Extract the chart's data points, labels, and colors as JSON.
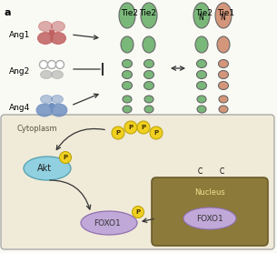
{
  "bg_color": "#fafaf5",
  "cell_bg": "#f0ead8",
  "nucleus_bg": "#8b7a3a",
  "nucleus_border": "#6b5a2a",
  "cytoplasm_label": "Cytoplasm",
  "nucleus_label": "Nucleus",
  "panel_label": "a",
  "ang_labels": [
    "Ang1",
    "Ang2",
    "Ang4"
  ],
  "tie2_color": "#7ab87a",
  "tie1_color": "#d4967a",
  "ang1_color": "#c06060",
  "ang2_color": "#aaaaaa",
  "ang4_color": "#7090c0",
  "phospho_color": "#f0d020",
  "phospho_edge": "#b8a000",
  "akt_color": "#90d0e0",
  "foxo1_color": "#c0a8d8",
  "arrow_color": "#333333",
  "cell_edge": "#aaaaaa",
  "nucleus_text": "#f5e090"
}
